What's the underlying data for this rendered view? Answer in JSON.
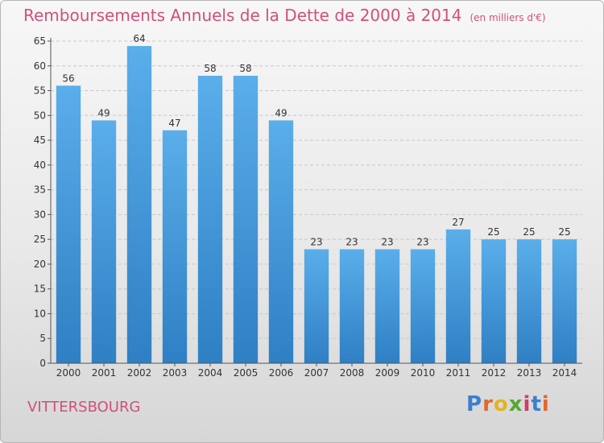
{
  "chart_data": {
    "type": "bar",
    "title": "Remboursements Annuels de la Dette de 2000 à 2014",
    "subtitle": "(en milliers d'€)",
    "categories": [
      "2000",
      "2001",
      "2002",
      "2003",
      "2004",
      "2005",
      "2006",
      "2007",
      "2008",
      "2009",
      "2010",
      "2011",
      "2012",
      "2013",
      "2014"
    ],
    "values": [
      56,
      49,
      64,
      47,
      58,
      58,
      49,
      23,
      23,
      23,
      23,
      27,
      25,
      25,
      25
    ],
    "ylim": [
      0,
      65
    ],
    "yticks": [
      0,
      5,
      10,
      15,
      20,
      25,
      30,
      35,
      40,
      45,
      50,
      55,
      60,
      65
    ],
    "grid": true,
    "bar_color": "#4aa0e0"
  },
  "commune": "VITTERSBOURG",
  "logo": {
    "letters": [
      "P",
      "r",
      "o",
      "x",
      "i",
      "t",
      "i"
    ],
    "colors": [
      "#3a7fcf",
      "#e0692b",
      "#e3b422",
      "#55a832",
      "#d33a6a",
      "#3a7fcf",
      "#e0692b"
    ]
  }
}
